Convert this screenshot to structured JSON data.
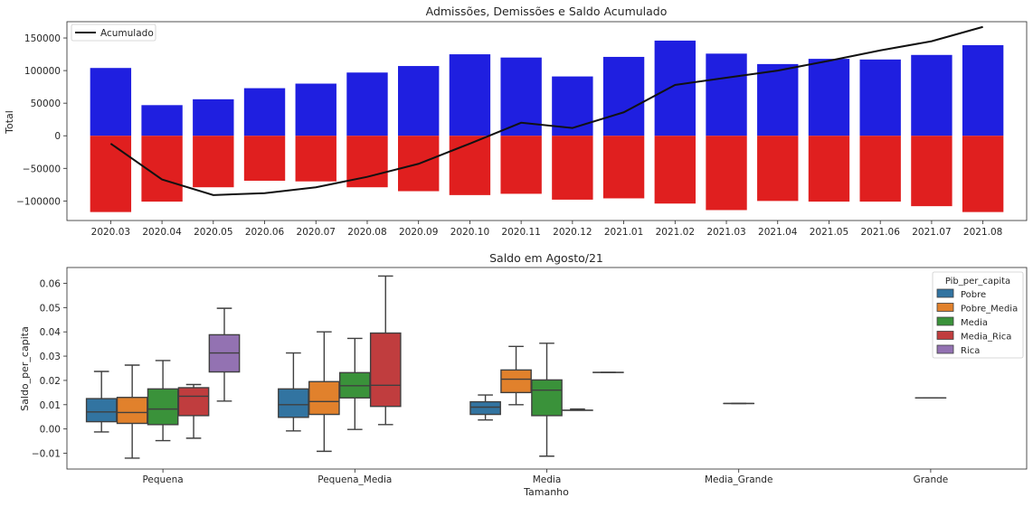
{
  "chart_data": [
    {
      "type": "bar",
      "title": "Admissões, Demissões e Saldo Acumulado",
      "xlabel": "",
      "ylabel": "Total",
      "ylim": [
        -130000,
        175000
      ],
      "yticks": [
        -100000,
        -50000,
        0,
        50000,
        100000,
        150000
      ],
      "ytick_labels": [
        "−100000",
        "−50000",
        "0",
        "50000",
        "100000",
        "150000"
      ],
      "categories": [
        "2020.03",
        "2020.04",
        "2020.05",
        "2020.06",
        "2020.07",
        "2020.08",
        "2020.09",
        "2020.10",
        "2020.11",
        "2020.12",
        "2021.01",
        "2021.02",
        "2021.03",
        "2021.04",
        "2021.05",
        "2021.06",
        "2021.07",
        "2021.08"
      ],
      "series": [
        {
          "values": [
            104000,
            47000,
            56000,
            73000,
            80000,
            97000,
            107000,
            125000,
            120000,
            91000,
            121000,
            146000,
            126000,
            110000,
            118000,
            117000,
            124000,
            139000
          ],
          "color": "#1f1fe0"
        },
        {
          "values": [
            -117000,
            -101000,
            -79000,
            -69000,
            -70000,
            -79000,
            -85000,
            -91000,
            -89000,
            -98000,
            -96000,
            -104000,
            -114000,
            -100000,
            -101000,
            -101000,
            -108000,
            -117000
          ],
          "color": "#e01f1f"
        },
        {
          "name": "Acumulado",
          "type": "line",
          "values": [
            -12000,
            -67000,
            -91000,
            -88000,
            -79000,
            -63000,
            -43000,
            -12000,
            20000,
            12000,
            36000,
            78000,
            89000,
            100000,
            115000,
            131000,
            145000,
            167000
          ],
          "color": "#111111"
        }
      ],
      "legend": {
        "position": "top-left",
        "entries": [
          "Acumulado"
        ]
      },
      "grid": false
    },
    {
      "type": "box",
      "title": "Saldo em Agosto/21",
      "xlabel": "Tamanho",
      "ylabel": "Saldo_per_capita",
      "ylim": [
        -0.0165,
        0.0665
      ],
      "yticks": [
        -0.01,
        0.0,
        0.01,
        0.02,
        0.03,
        0.04,
        0.05,
        0.06
      ],
      "ytick_labels": [
        "−0.01",
        "0.00",
        "0.01",
        "0.02",
        "0.03",
        "0.04",
        "0.05",
        "0.06"
      ],
      "categories": [
        "Pequena",
        "Pequena_Media",
        "Media",
        "Media_Grande",
        "Grande"
      ],
      "legend": {
        "title": "Pib_per_capita",
        "position": "top-right"
      },
      "grid": false,
      "hue": [
        {
          "name": "Pobre",
          "color": "#3274a1"
        },
        {
          "name": "Pobre_Media",
          "color": "#e1812c"
        },
        {
          "name": "Media",
          "color": "#3a923a"
        },
        {
          "name": "Media_Rica",
          "color": "#c03d3e"
        },
        {
          "name": "Rica",
          "color": "#9372b2"
        }
      ],
      "boxes": [
        {
          "category": "Pequena",
          "hue": "Pobre",
          "min": -0.0012,
          "q1": 0.003,
          "median": 0.007,
          "q3": 0.0125,
          "max": 0.0237
        },
        {
          "category": "Pequena",
          "hue": "Pobre_Media",
          "min": -0.012,
          "q1": 0.0023,
          "median": 0.0068,
          "q3": 0.013,
          "max": 0.0263
        },
        {
          "category": "Pequena",
          "hue": "Media",
          "min": -0.0048,
          "q1": 0.0018,
          "median": 0.0082,
          "q3": 0.0165,
          "max": 0.0282
        },
        {
          "category": "Pequena",
          "hue": "Media_Rica",
          "min": -0.0038,
          "q1": 0.0055,
          "median": 0.0135,
          "q3": 0.017,
          "max": 0.0183
        },
        {
          "category": "Pequena",
          "hue": "Rica",
          "min": 0.0115,
          "q1": 0.0235,
          "median": 0.0313,
          "q3": 0.0388,
          "max": 0.0497
        },
        {
          "category": "Pequena_Media",
          "hue": "Pobre",
          "min": -0.0008,
          "q1": 0.0048,
          "median": 0.01,
          "q3": 0.0165,
          "max": 0.0313
        },
        {
          "category": "Pequena_Media",
          "hue": "Pobre_Media",
          "min": -0.0092,
          "q1": 0.006,
          "median": 0.0113,
          "q3": 0.0195,
          "max": 0.04
        },
        {
          "category": "Pequena_Media",
          "hue": "Media",
          "min": -0.0002,
          "q1": 0.0128,
          "median": 0.0178,
          "q3": 0.0232,
          "max": 0.0373
        },
        {
          "category": "Pequena_Media",
          "hue": "Media_Rica",
          "min": 0.0018,
          "q1": 0.0093,
          "median": 0.018,
          "q3": 0.0395,
          "max": 0.063
        },
        {
          "category": "Media",
          "hue": "Pobre",
          "min": 0.0037,
          "q1": 0.006,
          "median": 0.009,
          "q3": 0.0112,
          "max": 0.014
        },
        {
          "category": "Media",
          "hue": "Pobre_Media",
          "min": 0.01,
          "q1": 0.015,
          "median": 0.0205,
          "q3": 0.0243,
          "max": 0.034
        },
        {
          "category": "Media",
          "hue": "Media",
          "min": -0.0112,
          "q1": 0.0055,
          "median": 0.016,
          "q3": 0.0202,
          "max": 0.0353
        },
        {
          "category": "Media",
          "hue": "Media_Rica",
          "min": 0.0077,
          "q1": 0.0077,
          "median": 0.0077,
          "q3": 0.0077,
          "max": 0.0082
        },
        {
          "category": "Media",
          "hue": "Rica",
          "min": 0.0233,
          "q1": 0.0233,
          "median": 0.0233,
          "q3": 0.0233,
          "max": 0.0233
        },
        {
          "category": "Media_Grande",
          "hue": "Media",
          "min": 0.0105,
          "q1": 0.0105,
          "median": 0.0105,
          "q3": 0.0105,
          "max": 0.0105
        },
        {
          "category": "Grande",
          "hue": "Media",
          "min": 0.0128,
          "q1": 0.0128,
          "median": 0.0128,
          "q3": 0.0128,
          "max": 0.0128
        }
      ]
    }
  ]
}
